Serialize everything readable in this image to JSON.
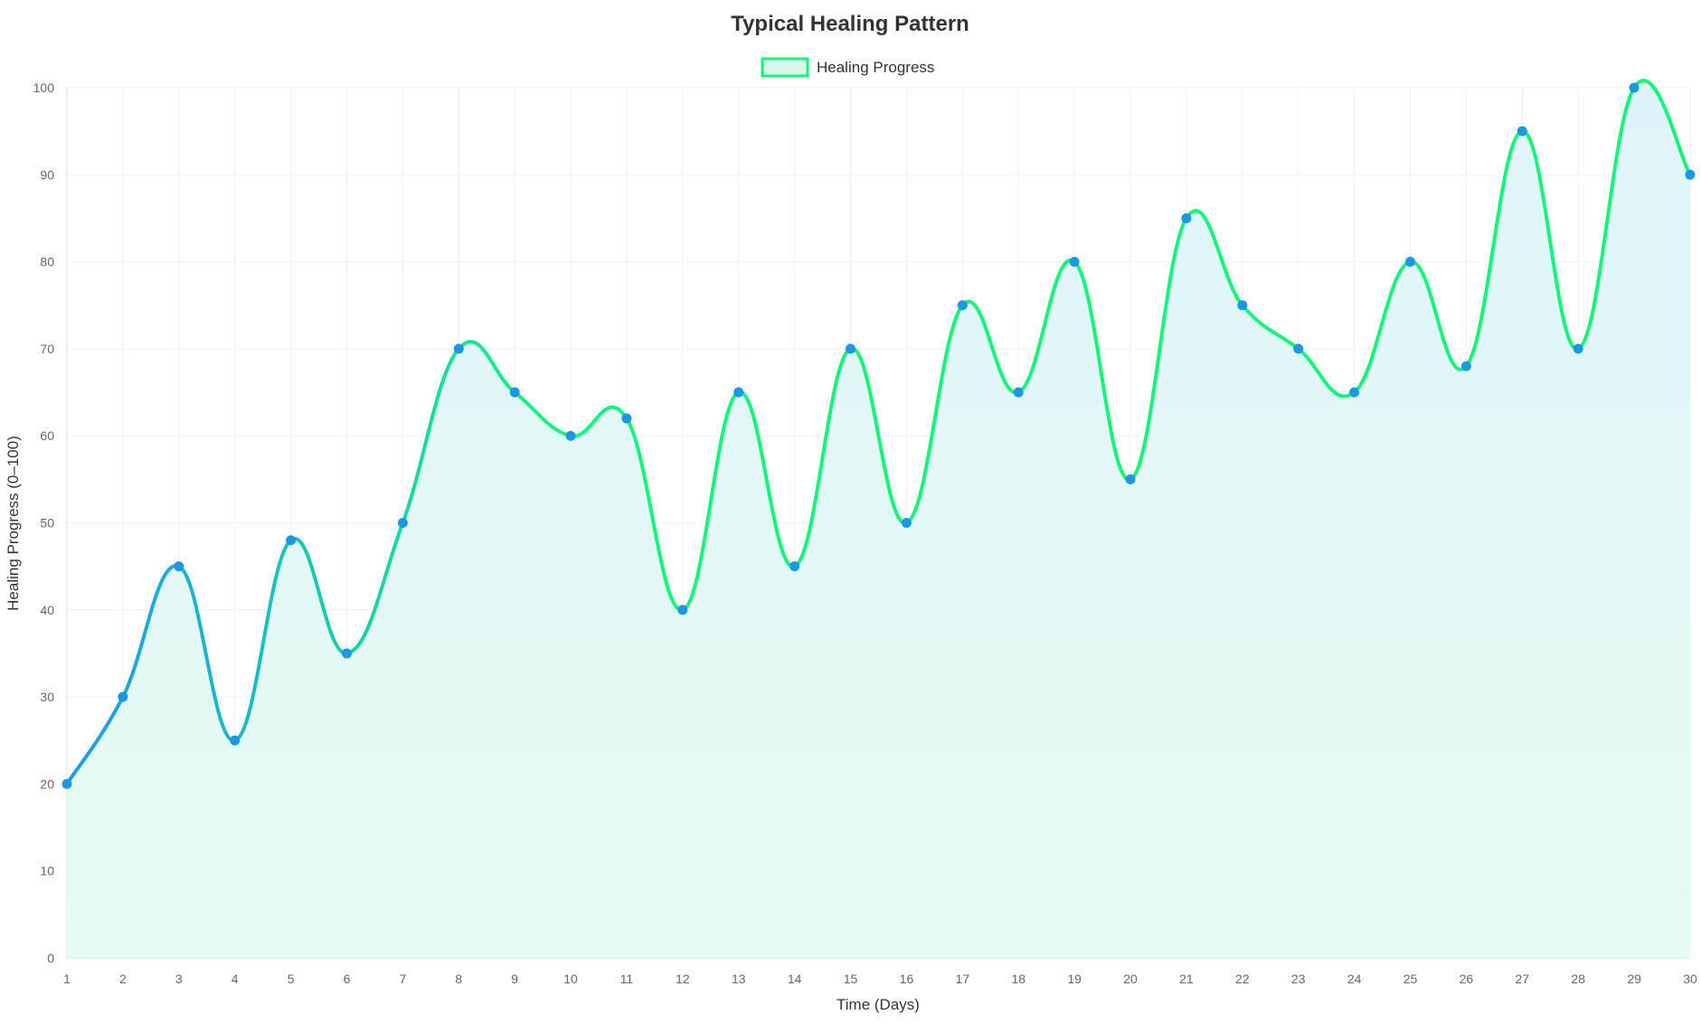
{
  "chart_data": {
    "type": "line",
    "title": "Typical Healing Pattern",
    "xlabel": "Time (Days)",
    "ylabel": "Healing Progress (0–100)",
    "categories": [
      "1",
      "2",
      "3",
      "4",
      "5",
      "6",
      "7",
      "8",
      "9",
      "10",
      "11",
      "12",
      "13",
      "14",
      "15",
      "16",
      "17",
      "18",
      "19",
      "20",
      "21",
      "22",
      "23",
      "24",
      "25",
      "26",
      "27",
      "28",
      "29",
      "30"
    ],
    "series": [
      {
        "name": "Healing Progress",
        "values": [
          20,
          30,
          45,
          25,
          48,
          35,
          50,
          70,
          65,
          60,
          62,
          40,
          65,
          45,
          70,
          50,
          75,
          65,
          80,
          55,
          85,
          75,
          70,
          65,
          80,
          68,
          95,
          70,
          100,
          90
        ]
      }
    ],
    "ylim": [
      0,
      100
    ],
    "yticks": [
      0,
      10,
      20,
      30,
      40,
      50,
      60,
      70,
      80,
      90,
      100
    ],
    "grid": true,
    "legend": "top-center",
    "fill": "area-under-line",
    "colors": {
      "line_start": "#1e9bef",
      "line_end": "#14f57a",
      "point": "#1a98e6",
      "fill_bottom": "#e6fbf1",
      "fill_top": "#dff4fa",
      "legend_border": "#14f57a",
      "legend_fill": "#d7f7ef"
    }
  }
}
